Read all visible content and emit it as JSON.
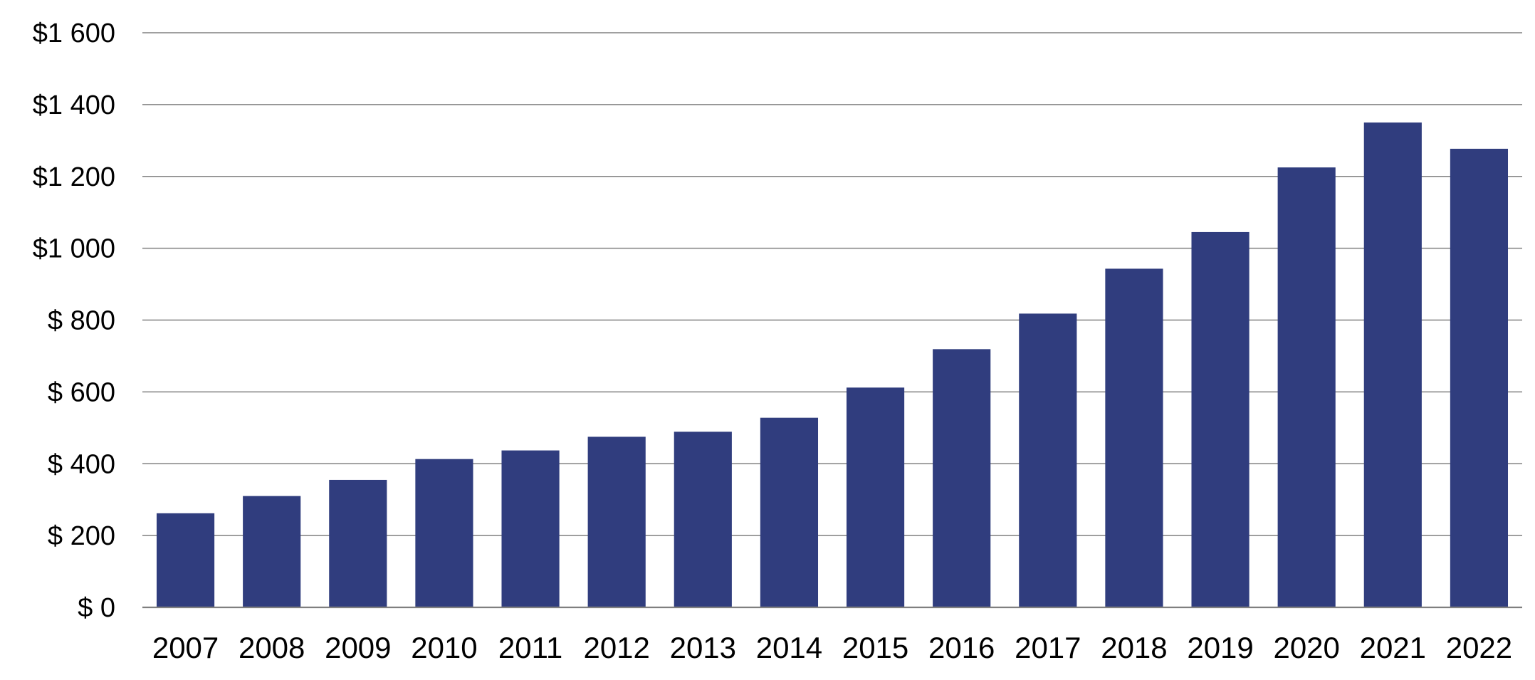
{
  "chart_data": {
    "type": "bar",
    "categories": [
      "2007",
      "2008",
      "2009",
      "2010",
      "2011",
      "2012",
      "2013",
      "2014",
      "2015",
      "2016",
      "2017",
      "2018",
      "2019",
      "2020",
      "2021",
      "2022"
    ],
    "series": [
      {
        "values": [
          262,
          310,
          355,
          413,
          437,
          475,
          489,
          528,
          612,
          719,
          818,
          943,
          1045,
          1225,
          1350,
          1277
        ]
      }
    ],
    "ylim": [
      0,
      1600
    ],
    "yticks": [
      0,
      200,
      400,
      600,
      800,
      1000,
      1200,
      1400,
      1600
    ],
    "ytick_labels": [
      "$ 0",
      "$ 200",
      "$ 400",
      "$ 600",
      "$ 800",
      "$1 000",
      "$1 200",
      "$1 400",
      "$1 600"
    ],
    "grid": true,
    "legend": "none",
    "colors": {
      "bar": "#303D7E",
      "grid": "#808080",
      "axis": "#7F7F7F"
    }
  }
}
